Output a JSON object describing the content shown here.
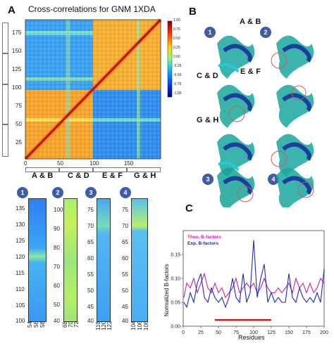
{
  "panels": {
    "a_label": "A",
    "b_label": "B",
    "c_label": "C"
  },
  "panel_a": {
    "title": "Cross-correlations for GNM 1XDA",
    "colorbar_ticks": [
      "1.00",
      "0.75",
      "0.50",
      "0.25",
      "0.00",
      "-0.25",
      "-0.50",
      "-0.75",
      "-1.00"
    ],
    "x_ticks": [
      "0",
      "50",
      "100",
      "150"
    ],
    "y_ticks": [
      "175",
      "150",
      "125",
      "100",
      "75",
      "50",
      "25"
    ],
    "group_labels": [
      "A & B",
      "C & D",
      "E & F",
      "G & H"
    ]
  },
  "panel_b": {
    "pair_labels": [
      "A & B",
      "C & D",
      "E & F",
      "G & H"
    ],
    "badges": [
      "1",
      "2",
      "3",
      "4"
    ]
  },
  "strips": [
    {
      "badge": "1",
      "y_ticks": [
        "135",
        "130",
        "125",
        "120",
        "115",
        "110",
        "105",
        "100"
      ],
      "x_ticks": [
        "54",
        "56",
        "58"
      ]
    },
    {
      "badge": "2",
      "y_ticks": [
        "100",
        "90",
        "80",
        "70",
        "60",
        "50",
        "40"
      ],
      "x_ticks": [
        "68",
        "70",
        "72"
      ]
    },
    {
      "badge": "3",
      "y_ticks": [
        "75",
        "70",
        "65",
        "60",
        "55",
        "50",
        "45",
        "40"
      ],
      "x_ticks": [
        "118",
        "120",
        "122"
      ]
    },
    {
      "badge": "4",
      "y_ticks": [
        "75",
        "70",
        "65",
        "60",
        "55",
        "50",
        "45",
        "40"
      ],
      "x_ticks": [
        "104",
        "106",
        "108"
      ]
    }
  ],
  "chart_data": {
    "type": "line",
    "title": "",
    "xlabel": "Residues",
    "ylabel": "Normalized B-factors",
    "xlim": [
      0,
      200
    ],
    "ylim": [
      0,
      0.2
    ],
    "x_ticks": [
      "0",
      "25",
      "50",
      "75",
      "100",
      "125",
      "150",
      "175",
      "200"
    ],
    "y_ticks": [
      "0.00",
      "0.05",
      "0.10",
      "0.15"
    ],
    "legend": "top-left",
    "series": [
      {
        "name": "Theo. B-factors",
        "color": "#cc1fa0",
        "x": [
          1,
          5,
          10,
          15,
          20,
          25,
          30,
          35,
          40,
          45,
          50,
          55,
          60,
          65,
          70,
          75,
          80,
          85,
          90,
          95,
          100,
          105,
          110,
          115,
          120,
          125,
          130,
          135,
          140,
          145,
          150,
          155,
          160,
          165,
          170,
          175,
          180,
          185,
          190,
          195,
          200
        ],
        "values": [
          0.06,
          0.09,
          0.08,
          0.1,
          0.07,
          0.09,
          0.11,
          0.08,
          0.07,
          0.09,
          0.07,
          0.08,
          0.06,
          0.07,
          0.08,
          0.1,
          0.07,
          0.08,
          0.09,
          0.08,
          0.09,
          0.07,
          0.08,
          0.1,
          0.08,
          0.07,
          0.07,
          0.08,
          0.07,
          0.08,
          0.09,
          0.07,
          0.1,
          0.08,
          0.09,
          0.07,
          0.09,
          0.07,
          0.08,
          0.1,
          0.09
        ]
      },
      {
        "name": "Exp. B-factors",
        "color": "#1a2bb8",
        "x": [
          1,
          5,
          10,
          15,
          20,
          25,
          30,
          35,
          40,
          45,
          50,
          55,
          60,
          65,
          70,
          75,
          80,
          85,
          90,
          95,
          100,
          105,
          110,
          115,
          120,
          125,
          130,
          135,
          140,
          145,
          150,
          155,
          160,
          165,
          170,
          175,
          180,
          185,
          190,
          195,
          200
        ],
        "values": [
          0.05,
          0.04,
          0.07,
          0.05,
          0.09,
          0.11,
          0.06,
          0.05,
          0.08,
          0.06,
          0.05,
          0.06,
          0.04,
          0.06,
          0.1,
          0.06,
          0.05,
          0.11,
          0.05,
          0.07,
          0.18,
          0.06,
          0.1,
          0.13,
          0.05,
          0.07,
          0.05,
          0.06,
          0.05,
          0.05,
          0.11,
          0.06,
          0.05,
          0.08,
          0.06,
          0.05,
          0.06,
          0.05,
          0.07,
          0.05,
          0.12
        ]
      }
    ],
    "highlight_bar": {
      "x_start": 45,
      "x_end": 125,
      "y": 0.013,
      "color": "#c11b1b"
    }
  }
}
